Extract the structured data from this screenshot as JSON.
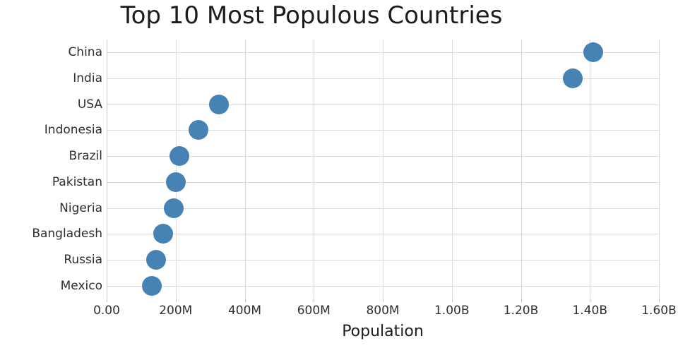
{
  "chart_data": {
    "type": "scatter",
    "title": "Top 10 Most Populous Countries",
    "xlabel": "Population",
    "ylabel": "",
    "categories": [
      "China",
      "India",
      "USA",
      "Indonesia",
      "Brazil",
      "Pakistan",
      "Nigeria",
      "Bangladesh",
      "Russia",
      "Mexico"
    ],
    "series": [
      {
        "name": "Population",
        "values_millions": [
          1410,
          1350,
          325,
          266,
          210,
          200,
          195,
          164,
          144,
          130
        ]
      }
    ],
    "xlim_millions": [
      0,
      1600
    ],
    "x_ticks": [
      {
        "value_millions": 0,
        "label": "0.00"
      },
      {
        "value_millions": 200,
        "label": "200M"
      },
      {
        "value_millions": 400,
        "label": "400M"
      },
      {
        "value_millions": 600,
        "label": "600M"
      },
      {
        "value_millions": 800,
        "label": "800M"
      },
      {
        "value_millions": 1000,
        "label": "1.00B"
      },
      {
        "value_millions": 1200,
        "label": "1.20B"
      },
      {
        "value_millions": 1400,
        "label": "1.40B"
      },
      {
        "value_millions": 1600,
        "label": "1.60B"
      }
    ],
    "grid": true,
    "legend_position": "none",
    "marker_color": "#4682b4",
    "grid_color": "#dcdcdc",
    "axis_line_color": "#c6c6c6",
    "text_color": "#2e2e2e",
    "title_color": "#1c1c1c",
    "background_color": "#ffffff",
    "marker_diameter_px": 28
  }
}
